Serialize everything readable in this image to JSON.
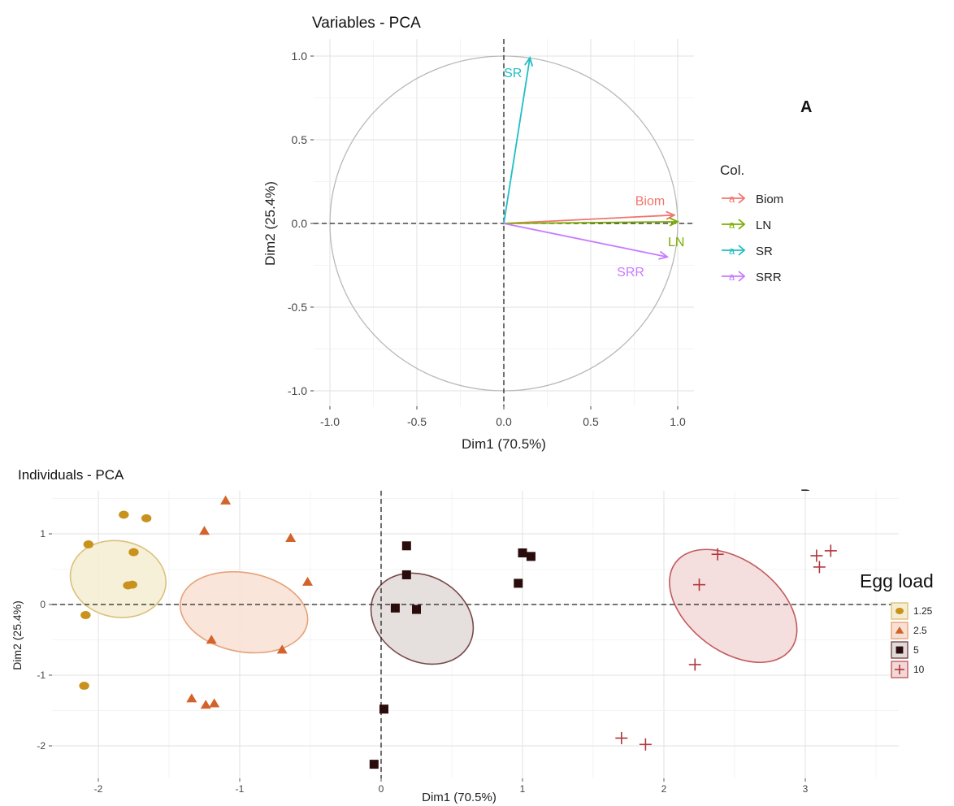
{
  "chart_data": [
    {
      "type": "scatter",
      "subtype": "pca-variable-correlation-circle",
      "panel_label": "A",
      "title": "Variables - PCA",
      "xlabel": "Dim1 (70.5%)",
      "ylabel": "Dim2 (25.4%)",
      "xlim": [
        -1.0,
        1.0
      ],
      "ylim": [
        -1.0,
        1.0
      ],
      "xticks": [
        "-1.0",
        "-0.5",
        "0.0",
        "0.5",
        "1.0"
      ],
      "yticks": [
        "-1.0",
        "-0.5",
        "0.0",
        "0.5",
        "1.0"
      ],
      "grid": true,
      "legend_title": "Col.",
      "legend_position": "right",
      "series": [
        {
          "name": "Biom",
          "x": 0.98,
          "y": 0.05,
          "color": "#f0766e"
        },
        {
          "name": "LN",
          "x": 1.0,
          "y": 0.01,
          "color": "#7cae00"
        },
        {
          "name": "SR",
          "x": 0.15,
          "y": 0.99,
          "color": "#1fbfc4"
        },
        {
          "name": "SRR",
          "x": 0.94,
          "y": -0.2,
          "color": "#c77cff"
        }
      ]
    },
    {
      "type": "scatter",
      "subtype": "pca-individuals",
      "panel_label": "B",
      "title": "Individuals - PCA",
      "xlabel": "Dim1 (70.5%)",
      "ylabel": "Dim2 (25.4%)",
      "xticks": [
        "-2",
        "-1",
        "0",
        "1",
        "2",
        "3"
      ],
      "yticks": [
        "-2",
        "-1",
        "0",
        "1"
      ],
      "grid": true,
      "legend_title": "Egg load",
      "legend_position": "right",
      "series": [
        {
          "name": "1.25",
          "marker": "circle",
          "color": "#c8921c",
          "points": [
            [
              -2.07,
              0.85
            ],
            [
              -1.82,
              1.27
            ],
            [
              -1.66,
              1.22
            ],
            [
              -1.75,
              0.74
            ],
            [
              -1.79,
              0.27
            ],
            [
              -1.76,
              0.28
            ],
            [
              -2.09,
              -0.15
            ],
            [
              -2.1,
              -1.15
            ]
          ],
          "ellipse": {
            "cx": -1.86,
            "cy": 0.36,
            "rx": 0.27,
            "ry": 0.68,
            "angle_deg": -80,
            "fill": "#f5edd2",
            "stroke": "#dcc07a"
          }
        },
        {
          "name": "2.5",
          "marker": "triangle",
          "color": "#d2642b",
          "points": [
            [
              -1.1,
              1.47
            ],
            [
              -1.25,
              1.04
            ],
            [
              -0.64,
              0.94
            ],
            [
              -0.52,
              0.32
            ],
            [
              -1.2,
              -0.5
            ],
            [
              -0.7,
              -0.64
            ],
            [
              -1.34,
              -1.33
            ],
            [
              -1.24,
              -1.42
            ],
            [
              -1.18,
              -1.4
            ]
          ],
          "ellipse": {
            "cx": -0.97,
            "cy": -0.11,
            "rx": 0.28,
            "ry": 0.91,
            "angle_deg": -80,
            "fill": "#f8e1d2",
            "stroke": "#e6a27a"
          }
        },
        {
          "name": "5",
          "marker": "square",
          "color": "#2a0c0c",
          "points": [
            [
              0.18,
              0.83
            ],
            [
              0.18,
              0.42
            ],
            [
              0.1,
              -0.05
            ],
            [
              0.25,
              -0.07
            ],
            [
              1.0,
              0.73
            ],
            [
              1.06,
              0.68
            ],
            [
              0.97,
              0.3
            ],
            [
              0.02,
              -1.48
            ],
            [
              -0.05,
              -2.26
            ]
          ],
          "ellipse": {
            "cx": 0.29,
            "cy": -0.2,
            "rx": 0.3,
            "ry": 0.76,
            "angle_deg": -60,
            "fill": "#e0dad8",
            "stroke": "#7a4a4a"
          }
        },
        {
          "name": "10",
          "marker": "plus",
          "color": "#b0363c",
          "points": [
            [
              2.38,
              0.71
            ],
            [
              2.25,
              0.28
            ],
            [
              3.08,
              0.69
            ],
            [
              3.18,
              0.76
            ],
            [
              3.1,
              0.53
            ],
            [
              2.22,
              -0.85
            ],
            [
              1.7,
              -1.89
            ],
            [
              1.87,
              -1.98
            ]
          ],
          "ellipse": {
            "cx": 2.49,
            "cy": -0.02,
            "rx": 0.32,
            "ry": 1.02,
            "angle_deg": -53,
            "fill": "#f3d8d8",
            "stroke": "#c25a5e"
          }
        }
      ]
    }
  ]
}
